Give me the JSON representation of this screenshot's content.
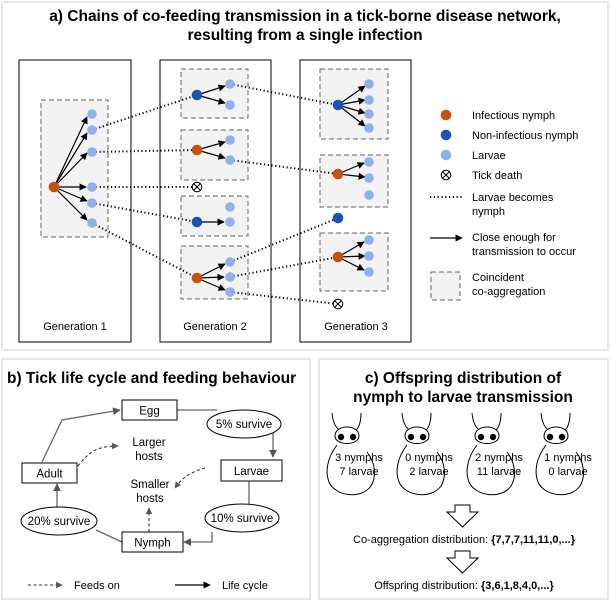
{
  "colors": {
    "infectious": "#c8500e",
    "non_infectious": "#1b53b5",
    "larvae": "#8fb0ea",
    "aggregation": "#f2f2f2"
  },
  "panel_a": {
    "title_line1": "a) Chains of co-feeding transmission in a tick-borne disease network,",
    "title_line2": "resulting from a single infection",
    "generations": [
      "Generation 1",
      "Generation 2",
      "Generation 3"
    ],
    "legend": {
      "infectious": "Infectious nymph",
      "non_infectious": "Non-infectious nymph",
      "larvae": "Larvae",
      "death": "Tick death",
      "becomes_line1": "Larvae becomes",
      "becomes_line2": "nymph",
      "close_line1": "Close enough for",
      "close_line2": "transmission to occur",
      "coagg_line1": "Coincident",
      "coagg_line2": "co-aggregation"
    }
  },
  "panel_b": {
    "title": "b) Tick life cycle and feeding behaviour",
    "egg": "Egg",
    "larvae": "Larvae",
    "nymph": "Nymph",
    "adult": "Adult",
    "survive_5": "5% survive",
    "survive_10": "10% survive",
    "survive_20": "20% survive",
    "larger_hosts_1": "Larger",
    "larger_hosts_2": "hosts",
    "smaller_hosts_1": "Smaller",
    "smaller_hosts_2": "hosts",
    "feeds_on": "Feeds on",
    "life_cycle": "Life cycle"
  },
  "panel_c": {
    "title_line1": "c) Offspring distribution of",
    "title_line2": "nymph to larvae transmission",
    "hosts": [
      {
        "nymphs": "3 nymphs",
        "larvae": "7 larvae"
      },
      {
        "nymphs": "0 nymphs",
        "larvae": "2 larvae"
      },
      {
        "nymphs": "2 nymphs",
        "larvae": "11 larvae"
      },
      {
        "nymphs": "1 nymphs",
        "larvae": "0 larvae"
      }
    ],
    "coagg_label": "Co-aggregation distribution: ",
    "coagg_values": "{7,7,7,11,11,0,...}",
    "offspring_label": "Offspring distribution: ",
    "offspring_values": "{3,6,1,8,4,0,...}"
  }
}
